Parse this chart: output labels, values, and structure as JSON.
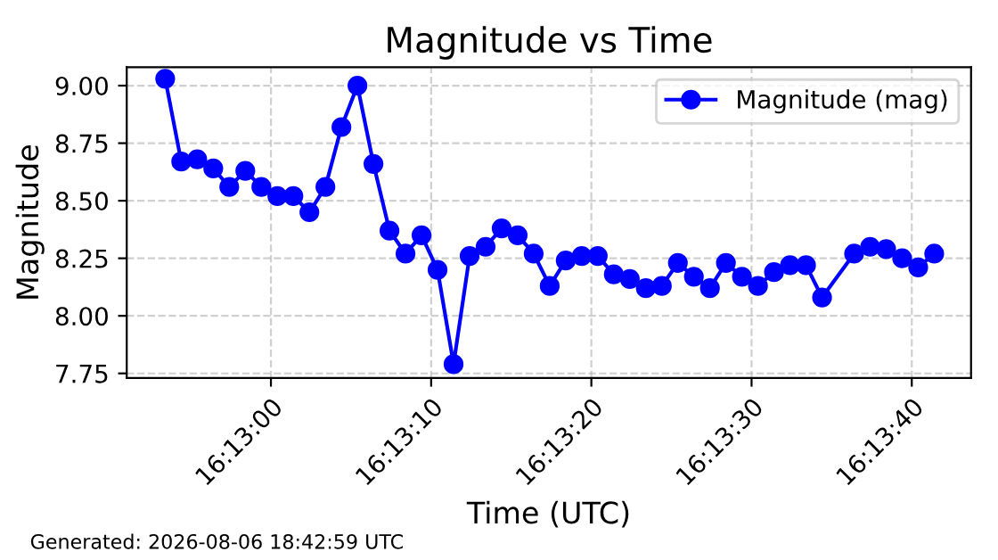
{
  "chart_data": {
    "type": "line",
    "title": "Magnitude vs Time",
    "xlabel": "Time (UTC)",
    "ylabel": "Magnitude",
    "x": [
      "2026-08-06T16:12:53.4",
      "2026-08-06T16:12:54.4",
      "2026-08-06T16:12:55.4",
      "2026-08-06T16:12:56.4",
      "2026-08-06T16:12:57.4",
      "2026-08-06T16:12:58.4",
      "2026-08-06T16:12:59.4",
      "2026-08-06T16:13:00.4",
      "2026-08-06T16:13:01.4",
      "2026-08-06T16:13:02.4",
      "2026-08-06T16:13:03.4",
      "2026-08-06T16:13:04.4",
      "2026-08-06T16:13:05.4",
      "2026-08-06T16:13:06.4",
      "2026-08-06T16:13:07.4",
      "2026-08-06T16:13:08.4",
      "2026-08-06T16:13:09.4",
      "2026-08-06T16:13:10.4",
      "2026-08-06T16:13:11.4",
      "2026-08-06T16:13:12.4",
      "2026-08-06T16:13:13.4",
      "2026-08-06T16:13:14.4",
      "2026-08-06T16:13:15.4",
      "2026-08-06T16:13:16.4",
      "2026-08-06T16:13:17.4",
      "2026-08-06T16:13:18.4",
      "2026-08-06T16:13:19.4",
      "2026-08-06T16:13:20.4",
      "2026-08-06T16:13:21.4",
      "2026-08-06T16:13:22.4",
      "2026-08-06T16:13:23.4",
      "2026-08-06T16:13:24.4",
      "2026-08-06T16:13:25.4",
      "2026-08-06T16:13:26.4",
      "2026-08-06T16:13:27.4",
      "2026-08-06T16:13:28.4",
      "2026-08-06T16:13:29.4",
      "2026-08-06T16:13:30.4",
      "2026-08-06T16:13:31.4",
      "2026-08-06T16:13:32.4",
      "2026-08-06T16:13:33.4",
      "2026-08-06T16:13:34.4",
      "2026-08-06T16:13:36.4",
      "2026-08-06T16:13:37.4",
      "2026-08-06T16:13:38.4",
      "2026-08-06T16:13:39.4",
      "2026-08-06T16:13:40.4",
      "2026-08-06T16:13:41.4"
    ],
    "series": [
      {
        "name": "Magnitude (mag)",
        "color": "#0000ff",
        "values": [
          9.03,
          8.67,
          8.68,
          8.64,
          8.56,
          8.63,
          8.56,
          8.52,
          8.52,
          8.45,
          8.56,
          8.82,
          9.0,
          8.66,
          8.37,
          8.27,
          8.35,
          8.2,
          7.79,
          8.26,
          8.3,
          8.38,
          8.35,
          8.27,
          8.13,
          8.24,
          8.26,
          8.26,
          8.18,
          8.16,
          8.12,
          8.13,
          8.23,
          8.17,
          8.12,
          8.23,
          8.17,
          8.13,
          8.19,
          8.22,
          8.22,
          8.08,
          8.27,
          8.3,
          8.29,
          8.25,
          8.21,
          8.27
        ]
      }
    ],
    "xlim": [
      "2026-08-06T16:12:51",
      "2026-08-06T16:13:43.7"
    ],
    "xticks": [
      {
        "value": "2026-08-06T16:13:00",
        "label": "16:13:00"
      },
      {
        "value": "2026-08-06T16:13:10",
        "label": "16:13:10"
      },
      {
        "value": "2026-08-06T16:13:20",
        "label": "16:13:20"
      },
      {
        "value": "2026-08-06T16:13:30",
        "label": "16:13:30"
      },
      {
        "value": "2026-08-06T16:13:40",
        "label": "16:13:40"
      }
    ],
    "ylim": [
      7.73,
      9.08
    ],
    "yticks": [
      7.75,
      {
        "value": 8,
        "label": "8.00"
      },
      8.25,
      {
        "value": 8.5,
        "label": "8.50"
      },
      8.75,
      {
        "value": 9,
        "label": "9.00"
      }
    ],
    "grid": true,
    "legend": "top right",
    "marker": "circle",
    "line_style": "solid",
    "annotations": [
      "Generated: 2026-08-06 18:42:59 UTC"
    ]
  }
}
